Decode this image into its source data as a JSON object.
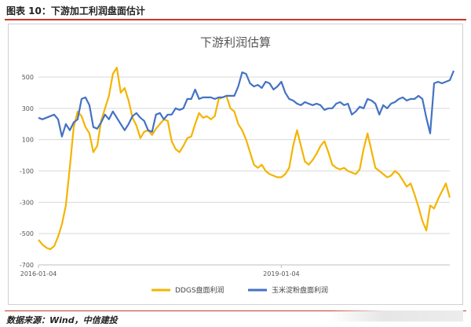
{
  "header": {
    "caption": "图表 10：下游加工利润盘面估计"
  },
  "source": {
    "text": "数据来源：Wind，中信建投"
  },
  "chart_data": {
    "type": "line",
    "title": "下游利润估算",
    "xlabel": "",
    "ylabel": "",
    "ylim": [
      -700,
      600
    ],
    "yticks": [
      500,
      300,
      100,
      -100,
      -300,
      -500,
      -700
    ],
    "xticks": [
      {
        "index": 0,
        "label": "2016-01-04"
      },
      {
        "index": 62,
        "label": "2019-01-04"
      }
    ],
    "grid": "horizontal",
    "legend": "bottom",
    "series": [
      {
        "name": "DDGS盘面利润",
        "color": "#f4b400",
        "values": [
          -540,
          -570,
          -590,
          -600,
          -580,
          -520,
          -440,
          -320,
          -80,
          180,
          280,
          250,
          180,
          140,
          20,
          60,
          220,
          300,
          380,
          520,
          560,
          400,
          430,
          350,
          240,
          190,
          110,
          150,
          160,
          130,
          170,
          200,
          230,
          220,
          90,
          40,
          20,
          60,
          110,
          120,
          200,
          270,
          240,
          250,
          230,
          250,
          360,
          370,
          380,
          300,
          280,
          200,
          160,
          100,
          20,
          -60,
          -80,
          -60,
          -100,
          -120,
          -130,
          -140,
          -140,
          -120,
          -80,
          60,
          160,
          60,
          -40,
          -60,
          -30,
          10,
          60,
          90,
          20,
          -60,
          -80,
          -90,
          -80,
          -100,
          -110,
          -120,
          -90,
          40,
          140,
          30,
          -80,
          -100,
          -120,
          -140,
          -130,
          -100,
          -120,
          -160,
          -200,
          -180,
          -250,
          -330,
          -420,
          -480,
          -320,
          -340,
          -280,
          -230,
          -180,
          -270
        ]
      },
      {
        "name": "玉米淀粉盘面利润",
        "color": "#4472c4",
        "values": [
          240,
          230,
          240,
          250,
          260,
          230,
          120,
          200,
          160,
          210,
          230,
          360,
          370,
          320,
          180,
          170,
          210,
          260,
          230,
          280,
          240,
          200,
          160,
          200,
          250,
          270,
          240,
          220,
          160,
          150,
          260,
          270,
          230,
          260,
          260,
          300,
          290,
          300,
          360,
          360,
          420,
          360,
          370,
          370,
          370,
          360,
          370,
          370,
          380,
          380,
          380,
          440,
          530,
          520,
          460,
          440,
          450,
          430,
          470,
          460,
          420,
          440,
          470,
          400,
          360,
          350,
          330,
          320,
          340,
          330,
          320,
          330,
          320,
          290,
          300,
          300,
          330,
          340,
          320,
          330,
          260,
          280,
          310,
          300,
          360,
          350,
          330,
          260,
          320,
          300,
          330,
          340,
          360,
          370,
          350,
          360,
          360,
          380,
          360,
          240,
          140,
          460,
          470,
          460,
          470,
          480,
          540
        ]
      }
    ]
  }
}
